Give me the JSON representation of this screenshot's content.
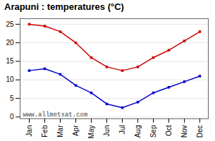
{
  "chart_data": {
    "type": "line",
    "title": "Arapuni : temperatures (°C)",
    "categories": [
      "Jan",
      "Feb",
      "Mar",
      "Apr",
      "May",
      "Jun",
      "Jul",
      "Aug",
      "Sep",
      "Oct",
      "Nov",
      "Dec"
    ],
    "series": [
      {
        "color": "#cc0000",
        "marker": "square",
        "values": [
          25,
          24.5,
          23,
          20,
          16,
          13.5,
          12.5,
          13.5,
          16,
          18,
          20.5,
          23
        ]
      },
      {
        "color": "#0000cc",
        "marker": "square",
        "values": [
          12.5,
          13,
          11.5,
          8.5,
          6.5,
          3.5,
          2.5,
          4,
          6.5,
          8,
          9.5,
          11
        ]
      }
    ],
    "ylim": [
      -0.5,
      26.5
    ],
    "yticks": [
      0,
      5,
      10,
      15,
      20,
      25
    ],
    "grid": true,
    "annotations": [
      "www.allmetsat.com"
    ]
  }
}
